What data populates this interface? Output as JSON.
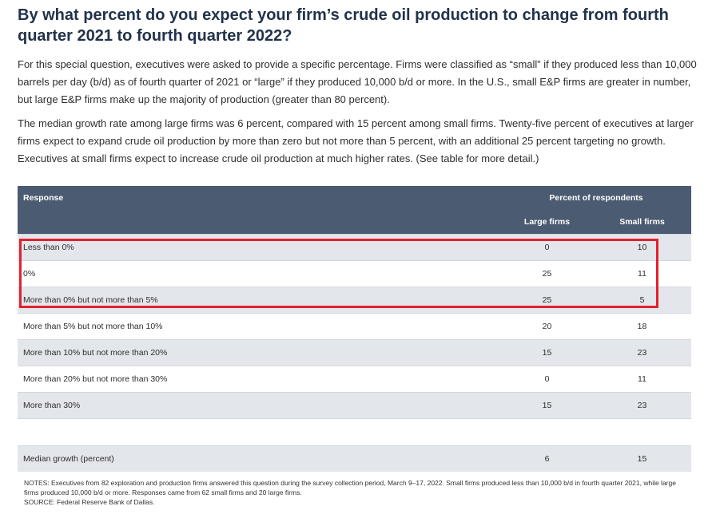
{
  "title": "By what percent do you expect your firm’s crude oil production to change from fourth quarter 2021 to fourth quarter 2022?",
  "paragraphs": [
    "For this special question, executives were asked to provide a specific percentage. Firms were classified as “small” if they produced less than 10,000 barrels per day (b/d) as of fourth quarter of 2021 or “large” if they produced 10,000 b/d or more. In the U.S., small E&P firms are greater in number, but large E&P firms make up the majority of production (greater than 80 percent).",
    "The median growth rate among large firms was 6 percent, compared with 15 percent among small firms. Twenty-five percent of executives at larger firms expect to expand crude oil production by more than zero but not more than 5 percent, with an additional 25 percent targeting no growth. Executives at small firms expect to increase crude oil production at much higher rates. (See table for more detail.)"
  ],
  "table": {
    "header_response": "Response",
    "header_group": "Percent of respondents",
    "header_large": "Large firms",
    "header_small": "Small firms",
    "rows": [
      {
        "response": "Less than 0%",
        "large": "0",
        "small": "10"
      },
      {
        "response": "0%",
        "large": "25",
        "small": "11"
      },
      {
        "response": "More than 0% but not more than 5%",
        "large": "25",
        "small": "5"
      },
      {
        "response": "More than 5% but not more than 10%",
        "large": "20",
        "small": "18"
      },
      {
        "response": "More than 10% but not more than 20%",
        "large": "15",
        "small": "23"
      },
      {
        "response": "More than 20% but not more than 30%",
        "large": "0",
        "small": "11"
      },
      {
        "response": "More than 30%",
        "large": "15",
        "small": "23"
      }
    ],
    "median": {
      "response": "Median growth (percent)",
      "large": "6",
      "small": "15"
    }
  },
  "notes": "NOTES: Executives from 82 exploration and production firms answered this question during the survey collection period, March 9–17, 2022. Small firms produced less than 10,000 b/d in fourth quarter 2021, while large firms produced 10,000 b/d or more. Responses came from 62 small firms and 20 large firms.",
  "source": "SOURCE: Federal Reserve Bank of Dallas.",
  "highlight_color": "#e5202e",
  "header_color": "#4b5b72"
}
